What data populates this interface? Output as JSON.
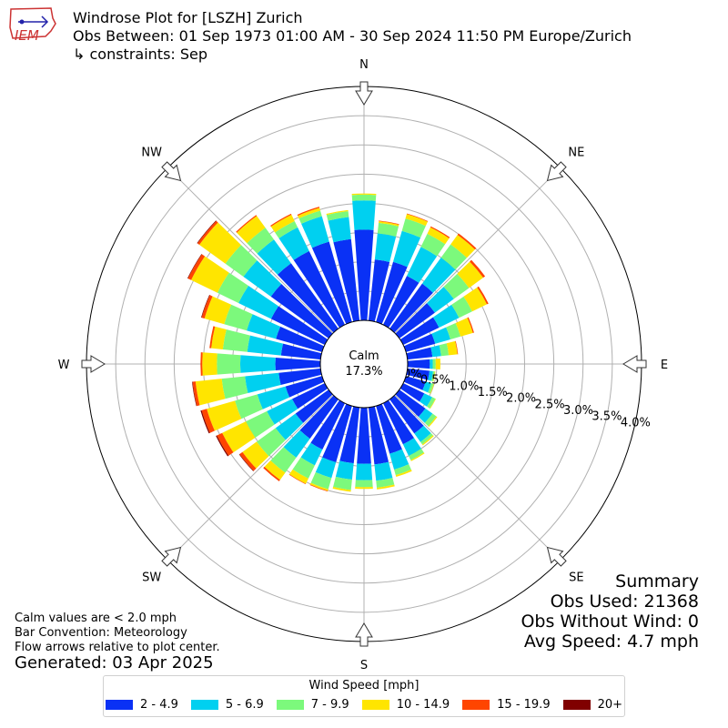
{
  "header": {
    "title_line1": "Windrose Plot for [LSZH] Zurich",
    "title_line2": "Obs Between: 01 Sep 1973 01:00 AM - 30 Sep 2024 11:50 PM Europe/Zurich",
    "title_line3": "↳ constraints: Sep",
    "logo_text": "IEM"
  },
  "notes": {
    "line1": "Calm values are < 2.0 mph",
    "line2": "Bar Convention: Meteorology",
    "line3": "Flow arrows relative to plot center.",
    "generated": "Generated: 03 Apr 2025"
  },
  "summary": {
    "title": "Summary",
    "obs_used": "Obs Used: 21368",
    "obs_without_wind": "Obs Without Wind: 0",
    "avg_speed": "Avg Speed: 4.7 mph"
  },
  "calm": {
    "label": "Calm",
    "value": "17.3%"
  },
  "chart_data": {
    "type": "windrose",
    "directions_deg": [
      0,
      10,
      20,
      30,
      40,
      50,
      60,
      70,
      80,
      90,
      100,
      110,
      120,
      130,
      140,
      150,
      160,
      170,
      180,
      190,
      200,
      210,
      220,
      230,
      240,
      250,
      260,
      270,
      280,
      290,
      300,
      310,
      320,
      330,
      340,
      350
    ],
    "compass_labels": [
      "N",
      "NE",
      "E",
      "SE",
      "S",
      "SW",
      "W",
      "NW"
    ],
    "radial_ticks": [
      "0.0%",
      "0.5%",
      "1.0%",
      "1.5%",
      "2.0%",
      "2.5%",
      "3.0%",
      "3.5%",
      "4.0%"
    ],
    "radial_max": 4.0,
    "calm_percent": 17.3,
    "legend_title": "Wind Speed [mph]",
    "series": [
      {
        "name": "2 - 4.9",
        "color": "#0a31f5",
        "values": [
          1.55,
          1.05,
          1.07,
          0.93,
          0.95,
          0.75,
          0.68,
          0.52,
          0.43,
          0.38,
          0.38,
          0.35,
          0.4,
          0.55,
          0.72,
          0.78,
          0.85,
          0.98,
          0.96,
          0.96,
          1.0,
          0.88,
          0.83,
          0.7,
          0.62,
          0.65,
          0.72,
          0.77,
          0.68,
          0.82,
          1.02,
          1.22,
          1.38,
          1.4,
          1.43,
          1.4
        ]
      },
      {
        "name": "5 - 6.9",
        "color": "#00d0f0",
        "values": [
          0.5,
          0.45,
          0.55,
          0.55,
          0.55,
          0.4,
          0.38,
          0.27,
          0.15,
          0.05,
          0.06,
          0.1,
          0.15,
          0.15,
          0.18,
          0.22,
          0.28,
          0.28,
          0.28,
          0.28,
          0.28,
          0.3,
          0.4,
          0.42,
          0.48,
          0.5,
          0.58,
          0.6,
          0.58,
          0.52,
          0.62,
          0.58,
          0.5,
          0.45,
          0.45,
          0.38
        ]
      },
      {
        "name": "7 - 9.9",
        "color": "#7cf97c",
        "values": [
          0.1,
          0.18,
          0.22,
          0.25,
          0.28,
          0.32,
          0.25,
          0.18,
          0.13,
          0.05,
          0.03,
          0.04,
          0.06,
          0.08,
          0.05,
          0.08,
          0.1,
          0.12,
          0.12,
          0.18,
          0.2,
          0.25,
          0.32,
          0.4,
          0.4,
          0.4,
          0.4,
          0.4,
          0.42,
          0.4,
          0.4,
          0.38,
          0.25,
          0.12,
          0.1,
          0.1
        ]
      },
      {
        "name": "10 - 14.9",
        "color": "#ffe500",
        "values": [
          0.02,
          0.03,
          0.08,
          0.12,
          0.2,
          0.3,
          0.28,
          0.22,
          0.15,
          0.08,
          0.01,
          0.01,
          0.01,
          0.02,
          0.02,
          0.02,
          0.03,
          0.03,
          0.03,
          0.03,
          0.03,
          0.1,
          0.15,
          0.3,
          0.45,
          0.5,
          0.45,
          0.25,
          0.2,
          0.35,
          0.5,
          0.55,
          0.25,
          0.12,
          0.05,
          0.02
        ]
      },
      {
        "name": "15 - 19.9",
        "color": "#ff4500",
        "values": [
          0.0,
          0.01,
          0.01,
          0.02,
          0.03,
          0.04,
          0.03,
          0.02,
          0.01,
          0.0,
          0.0,
          0.0,
          0.0,
          0.0,
          0.0,
          0.0,
          0.0,
          0.0,
          0.0,
          0.0,
          0.01,
          0.01,
          0.03,
          0.06,
          0.1,
          0.09,
          0.05,
          0.03,
          0.03,
          0.05,
          0.06,
          0.04,
          0.02,
          0.02,
          0.02,
          0.0
        ]
      },
      {
        "name": "20+",
        "color": "#800000",
        "values": [
          0.0,
          0.0,
          0.0,
          0.0,
          0.0,
          0.0,
          0.0,
          0.0,
          0.0,
          0.0,
          0.0,
          0.0,
          0.0,
          0.0,
          0.0,
          0.0,
          0.0,
          0.0,
          0.0,
          0.0,
          0.0,
          0.0,
          0.0,
          0.01,
          0.02,
          0.02,
          0.01,
          0.0,
          0.0,
          0.01,
          0.01,
          0.01,
          0.0,
          0.0,
          0.0,
          0.0
        ]
      }
    ]
  }
}
